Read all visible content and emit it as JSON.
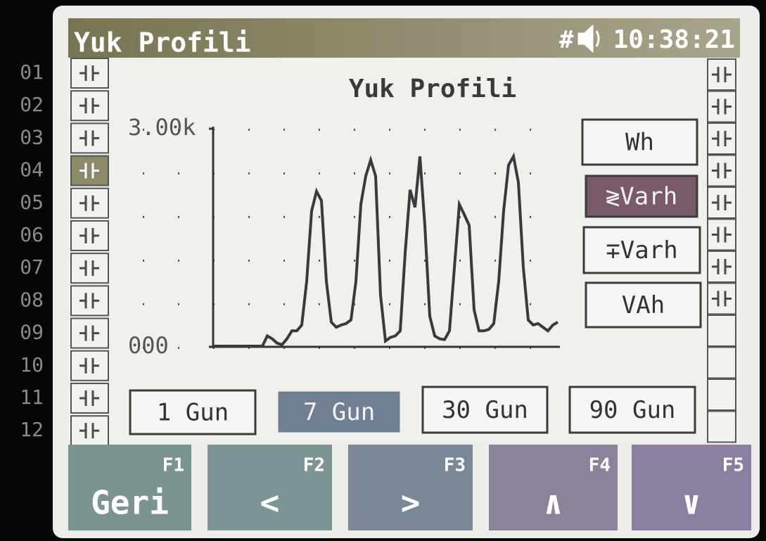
{
  "header": {
    "title": "Yuk Profili",
    "status_icon": "#",
    "time": "10:38:21"
  },
  "row_labels": [
    "01",
    "02",
    "03",
    "04",
    "05",
    "06",
    "07",
    "08",
    "09",
    "10",
    "11",
    "12"
  ],
  "chart_data": {
    "type": "line",
    "title": "Yuk Profili",
    "color": "#3a3a3a",
    "ylim": [
      0,
      3000
    ],
    "yticks": [
      {
        "value": 3000,
        "label": "3.00k"
      },
      {
        "value": 0,
        "label": "000"
      }
    ],
    "values": [
      10,
      10,
      10,
      10,
      10,
      10,
      10,
      10,
      10,
      10,
      10,
      150,
      110,
      50,
      30,
      110,
      220,
      220,
      300,
      900,
      1870,
      2140,
      2010,
      900,
      340,
      270,
      300,
      320,
      370,
      900,
      1960,
      2350,
      2570,
      2350,
      710,
      80,
      130,
      150,
      220,
      1290,
      2160,
      1920,
      2620,
      1670,
      420,
      150,
      110,
      100,
      220,
      1090,
      1960,
      1820,
      1670,
      510,
      220,
      220,
      240,
      320,
      900,
      1870,
      2500,
      2620,
      2260,
      1090,
      370,
      300,
      320,
      270,
      220,
      300,
      340
    ]
  },
  "unit_buttons": [
    "Wh",
    "≷Varh",
    "∓Varh",
    "VAh"
  ],
  "period_buttons": [
    "1 Gun",
    "7 Gun",
    "30 Gun",
    "90 Gun"
  ],
  "function_keys": [
    {
      "key": "F1",
      "label": "Geri"
    },
    {
      "key": "F2",
      "label": "<"
    },
    {
      "key": "F3",
      "label": ">"
    },
    {
      "key": "F4",
      "label": "∧"
    },
    {
      "key": "F5",
      "label": "∨"
    }
  ]
}
